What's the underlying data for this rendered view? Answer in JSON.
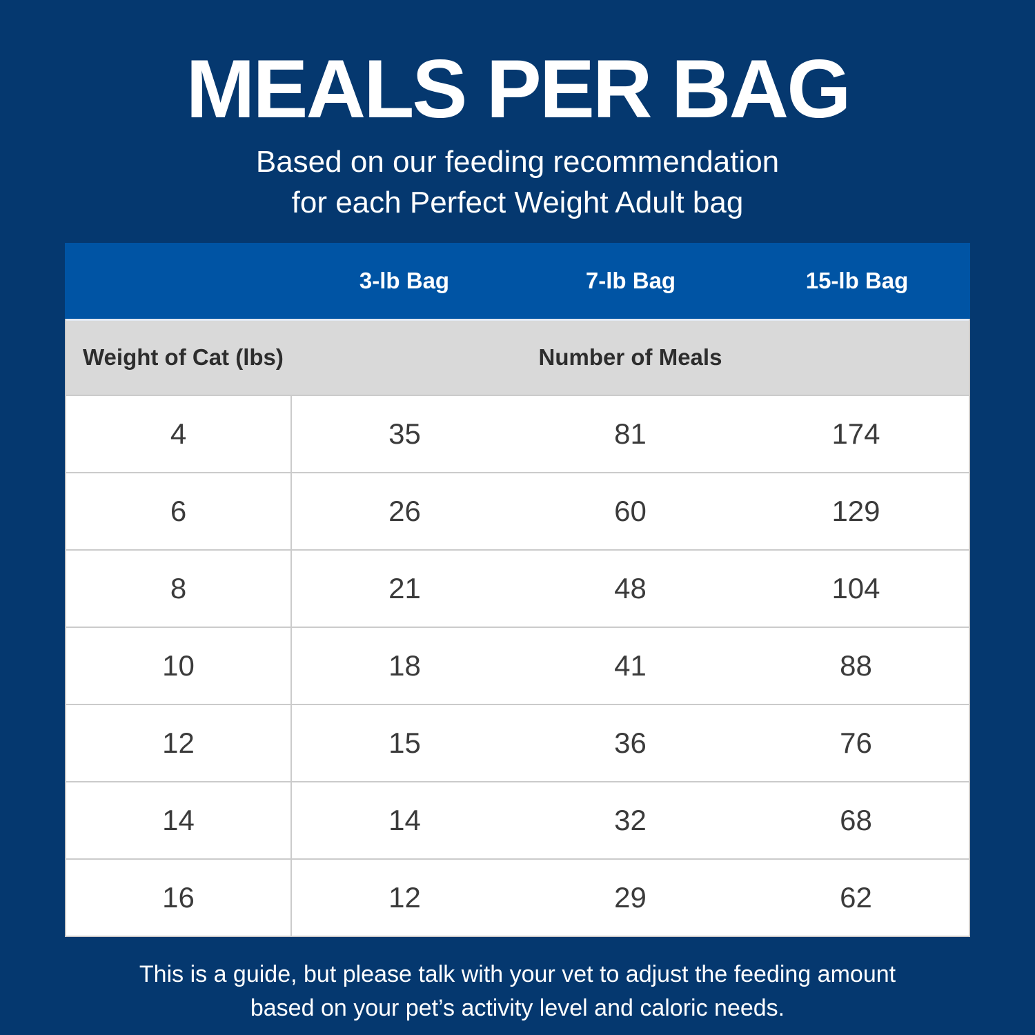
{
  "page": {
    "title": "MEALS PER BAG",
    "subtitle": [
      "Based on our feeding recommendation",
      "for each Perfect Weight Adult bag"
    ],
    "footnote": [
      "This is a guide, but please talk with your vet to adjust the feeding amount",
      "based on your pet’s activity level and caloric needs."
    ]
  },
  "table": {
    "bag_columns": [
      "3-lb Bag",
      "7-lb Bag",
      "15-lb Bag"
    ],
    "row_header": "Weight of Cat (lbs)",
    "group_header": "Number of Meals"
  },
  "chart_data": {
    "type": "table",
    "title": "MEALS PER BAG",
    "subtitle": "Based on our feeding recommendation for each Perfect Weight Adult bag",
    "columns": [
      "Weight of Cat (lbs)",
      "3-lb Bag",
      "7-lb Bag",
      "15-lb Bag"
    ],
    "value_group_label": "Number of Meals",
    "rows": [
      {
        "weight": "4",
        "meals": [
          "35",
          "81",
          "174"
        ]
      },
      {
        "weight": "6",
        "meals": [
          "26",
          "60",
          "129"
        ]
      },
      {
        "weight": "8",
        "meals": [
          "21",
          "48",
          "104"
        ]
      },
      {
        "weight": "10",
        "meals": [
          "18",
          "41",
          "88"
        ]
      },
      {
        "weight": "12",
        "meals": [
          "15",
          "36",
          "76"
        ]
      },
      {
        "weight": "14",
        "meals": [
          "14",
          "32",
          "68"
        ]
      },
      {
        "weight": "16",
        "meals": [
          "12",
          "29",
          "62"
        ]
      }
    ],
    "footnote": "This is a guide, but please talk with your vet to adjust the feeding amount based on your pet’s activity level and caloric needs."
  },
  "colors": {
    "background_navy": "#05386f",
    "header_blue": "#0054a4",
    "subheader_gray": "#d9d9d9",
    "row_white": "#ffffff",
    "border_gray": "#cbcbcb",
    "cell_text": "#3b3b3b",
    "text_white": "#ffffff"
  }
}
